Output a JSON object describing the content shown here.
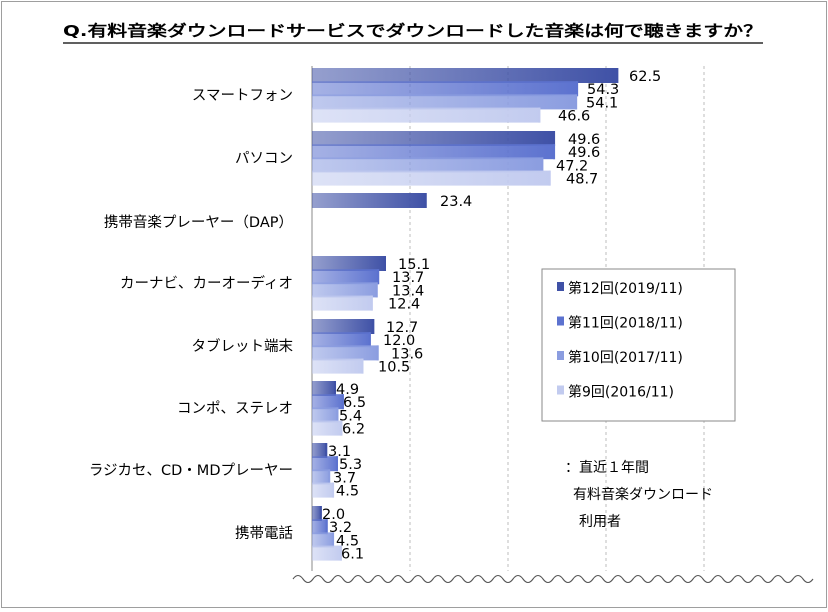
{
  "chart_data": {
    "type": "bar",
    "orientation": "horizontal",
    "title": "Q.有料音楽ダウンロードサービスでダウンロードした音楽は何で聴きますか？",
    "categories": [
      "スマートフォン",
      "パソコン",
      "携帯音楽プレーヤー（DAP）",
      "カーナビ、カーオーディオ",
      "タブレット端末",
      "コンポ、ステレオ",
      "ラジカセ、CD・MDプレーヤー",
      "携帯電話"
    ],
    "series": [
      {
        "name": "第12回(2019/11)",
        "color": "#3f51a6",
        "values": [
          62.5,
          49.6,
          23.4,
          15.1,
          12.7,
          4.9,
          3.1,
          2.0
        ]
      },
      {
        "name": "第11回(2018/11)",
        "color": "#5c72cf",
        "values": [
          54.3,
          49.6,
          null,
          13.7,
          12.0,
          6.5,
          5.3,
          3.2
        ]
      },
      {
        "name": "第10回(2017/11)",
        "color": "#8b9de0",
        "values": [
          54.1,
          47.2,
          null,
          13.4,
          13.6,
          5.4,
          3.7,
          4.5
        ]
      },
      {
        "name": "第9回(2016/11)",
        "color": "#c2cbef",
        "values": [
          46.6,
          48.7,
          null,
          12.4,
          10.5,
          6.2,
          4.5,
          6.1
        ]
      }
    ],
    "value_labels": [
      [
        "62.5",
        "54.3",
        "54.1",
        "46.6"
      ],
      [
        "49.6",
        "49.6",
        "47.2",
        "48.7"
      ],
      [
        "23.4"
      ],
      [
        "15.1",
        "13.7",
        "13.4",
        "12.4"
      ],
      [
        "12.7",
        "12.0",
        "13.6",
        "10.5"
      ],
      [
        "4.9",
        "6.5",
        "5.4",
        "6.2"
      ],
      [
        "3.1",
        "5.3",
        "3.7",
        "4.5"
      ],
      [
        "2.0",
        "3.2",
        "4.5",
        "6.1"
      ]
    ],
    "xlim": [
      0,
      100
    ],
    "grid": "vertical dashed",
    "legend_position": "right"
  },
  "note": {
    "line1": "：直近１年間",
    "line2": "有料音楽ダウンロード",
    "line3": "利用者"
  }
}
